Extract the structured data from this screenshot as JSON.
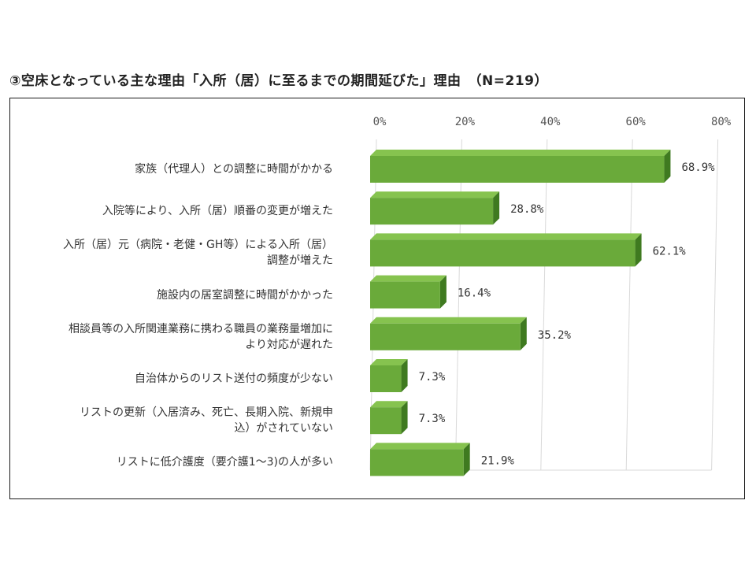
{
  "title": "③空床となっている主な理由「入所（居）に至るまでの期間延びた」理由　（N=219）",
  "chart_data": {
    "type": "bar",
    "orientation": "horizontal",
    "style": "3d",
    "bar_color": "#6aaa3a",
    "bar_color_top": "#86c34f",
    "bar_color_side": "#3f7a20",
    "xlim": [
      0,
      80
    ],
    "x_ticks": [
      "0%",
      "20%",
      "40%",
      "60%",
      "80%"
    ],
    "tick_values": [
      0,
      20,
      40,
      60,
      80
    ],
    "grid": true,
    "legend": "none",
    "categories": [
      [
        "家族（代理人）との調整に時間がかかる"
      ],
      [
        "入院等により、入所（居）順番の変更が増えた"
      ],
      [
        "入所（居）元（病院・老健・GH等）による入所（居）",
        "調整が増えた"
      ],
      [
        "施設内の居室調整に時間がかかった"
      ],
      [
        "相談員等の入所関連業務に携わる職員の業務量増加に",
        "より対応が遅れた"
      ],
      [
        "自治体からのリスト送付の頻度が少ない"
      ],
      [
        "リストの更新（入居済み、死亡、長期入院、新規申",
        "込）がされていない"
      ],
      [
        "リストに低介護度（要介護1～3)の人が多い"
      ]
    ],
    "values": [
      68.9,
      28.8,
      62.1,
      16.4,
      35.2,
      7.3,
      7.3,
      21.9
    ],
    "data_labels": [
      "68.9%",
      "28.8%",
      "62.1%",
      "16.4%",
      "35.2%",
      "7.3%",
      "7.3%",
      "21.9%"
    ]
  }
}
